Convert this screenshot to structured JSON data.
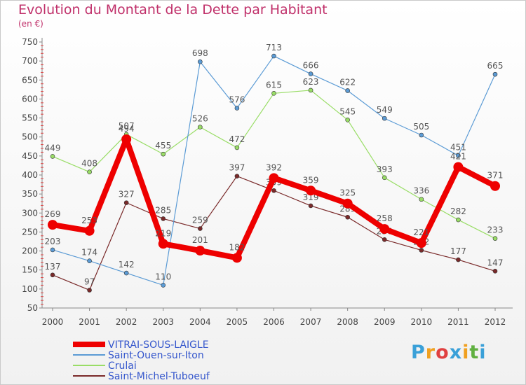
{
  "title": "Evolution du Montant de la Dette par Habitant",
  "unit": "(en €)",
  "logo": {
    "letters": [
      {
        "ch": "P",
        "color": "#3aa0d8"
      },
      {
        "ch": "r",
        "color": "#f0a020"
      },
      {
        "ch": "o",
        "color": "#e04040"
      },
      {
        "ch": "x",
        "color": "#3aa0d8"
      },
      {
        "ch": "i",
        "color": "#f0a020"
      },
      {
        "ch": "t",
        "color": "#60b040"
      },
      {
        "ch": "i",
        "color": "#3aa0d8"
      }
    ]
  },
  "chart_data": {
    "type": "line",
    "x": [
      "2000",
      "2001",
      "2002",
      "2003",
      "2004",
      "2005",
      "2006",
      "2007",
      "2008",
      "2009",
      "2010",
      "2011",
      "2012"
    ],
    "ylim": [
      50,
      750
    ],
    "yticks": [
      50,
      100,
      150,
      200,
      250,
      300,
      350,
      400,
      450,
      500,
      550,
      600,
      650,
      700,
      750
    ],
    "grid": false,
    "legend_position": "bottom-left",
    "series": [
      {
        "name": "VITRAI-SOUS-LAIGLE",
        "color": "#ee0000",
        "width": 8,
        "marker": 7,
        "values": [
          269,
          253,
          494,
          219,
          201,
          182,
          392,
          359,
          325,
          258,
          221,
          421,
          371
        ]
      },
      {
        "name": "Saint-Ouen-sur-Iton",
        "color": "#5b9bd5",
        "width": 1.2,
        "marker": 3,
        "values": [
          203,
          174,
          142,
          110,
          698,
          576,
          713,
          666,
          622,
          549,
          505,
          451,
          665
        ]
      },
      {
        "name": "Crulai",
        "color": "#99dd66",
        "width": 1.2,
        "marker": 3,
        "values": [
          449,
          408,
          507,
          455,
          526,
          472,
          615,
          623,
          545,
          393,
          336,
          282,
          233
        ]
      },
      {
        "name": "Saint-Michel-Tuboeuf",
        "color": "#7a2a2a",
        "width": 1.2,
        "marker": 3,
        "values": [
          137,
          97,
          327,
          285,
          259,
          397,
          359,
          319,
          289,
          230,
          202,
          177,
          147
        ]
      }
    ]
  }
}
